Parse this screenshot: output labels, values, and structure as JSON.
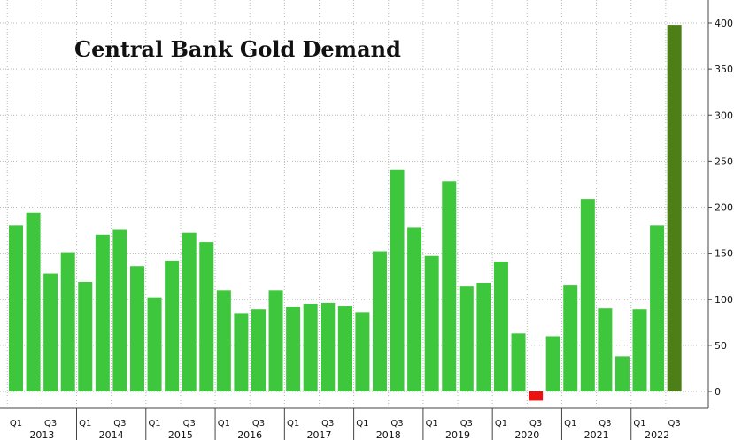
{
  "chart_data": {
    "type": "bar",
    "title": "Central Bank Gold Demand",
    "xlabel": "",
    "ylabel": "",
    "ylim": [
      -15,
      410
    ],
    "yticks": [
      0,
      50,
      100,
      150,
      200,
      250,
      300,
      350,
      400
    ],
    "grid": true,
    "legend": "none",
    "years": [
      "2013",
      "2014",
      "2015",
      "2016",
      "2017",
      "2018",
      "2019",
      "2020",
      "2021",
      "2022"
    ],
    "quarter_labels": [
      "Q1",
      "Q3"
    ],
    "categories": [
      "Q1 2013",
      "Q2 2013",
      "Q3 2013",
      "Q4 2013",
      "Q1 2014",
      "Q2 2014",
      "Q3 2014",
      "Q4 2014",
      "Q1 2015",
      "Q2 2015",
      "Q3 2015",
      "Q4 2015",
      "Q1 2016",
      "Q2 2016",
      "Q3 2016",
      "Q4 2016",
      "Q1 2017",
      "Q2 2017",
      "Q3 2017",
      "Q4 2017",
      "Q1 2018",
      "Q2 2018",
      "Q3 2018",
      "Q4 2018",
      "Q1 2019",
      "Q2 2019",
      "Q3 2019",
      "Q4 2019",
      "Q1 2020",
      "Q2 2020",
      "Q3 2020",
      "Q4 2020",
      "Q1 2021",
      "Q2 2021",
      "Q3 2021",
      "Q4 2021",
      "Q1 2022",
      "Q2 2022",
      "Q3 2022"
    ],
    "values": [
      180,
      194,
      128,
      151,
      119,
      170,
      176,
      136,
      102,
      142,
      172,
      162,
      110,
      85,
      89,
      110,
      92,
      95,
      96,
      93,
      86,
      152,
      241,
      178,
      147,
      228,
      114,
      118,
      141,
      63,
      -10,
      60,
      115,
      209,
      90,
      38,
      89,
      180,
      398
    ],
    "colors": {
      "positive": "#3ec63c",
      "negative": "#ee1111",
      "highlight": "#4e7e17"
    },
    "highlight_index": 38
  }
}
